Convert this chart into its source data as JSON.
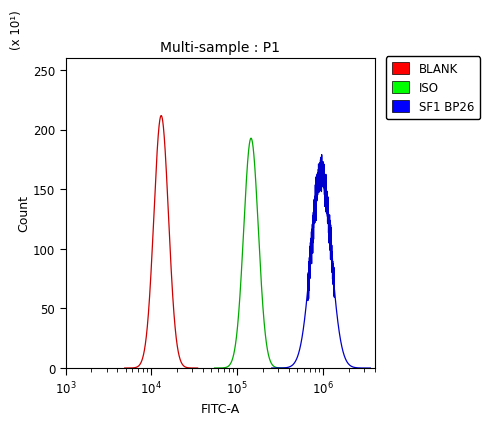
{
  "title": "Multi-sample : P1",
  "xlabel": "FITC-A",
  "ylabel": "Count",
  "y_scale_label": "(x 10¹)",
  "ylim": [
    0,
    260
  ],
  "yticks": [
    0,
    50,
    100,
    150,
    200,
    250
  ],
  "xlim_log": [
    1000.0,
    4000000.0
  ],
  "curves": [
    {
      "label": "BLANK",
      "color": "#cc0000",
      "peak_x": 13000.0,
      "peak_y": 212,
      "sigma_log": 0.085,
      "has_noise": false
    },
    {
      "label": "ISO",
      "color": "#00aa00",
      "peak_x": 145000.0,
      "peak_y": 193,
      "sigma_log": 0.085,
      "has_noise": false
    },
    {
      "label": "SF1 BP26",
      "color": "#0000cc",
      "peak_x": 950000.0,
      "peak_y": 165,
      "sigma_log": 0.115,
      "has_noise": true
    }
  ],
  "legend_colors": [
    "#ff0000",
    "#00ff00",
    "#0000ff"
  ],
  "legend_labels": [
    "BLANK",
    "ISO",
    "SF1 BP26"
  ],
  "background_color": "#ffffff",
  "plot_bg_color": "#ffffff",
  "title_fontsize": 10,
  "label_fontsize": 9,
  "tick_fontsize": 8.5
}
